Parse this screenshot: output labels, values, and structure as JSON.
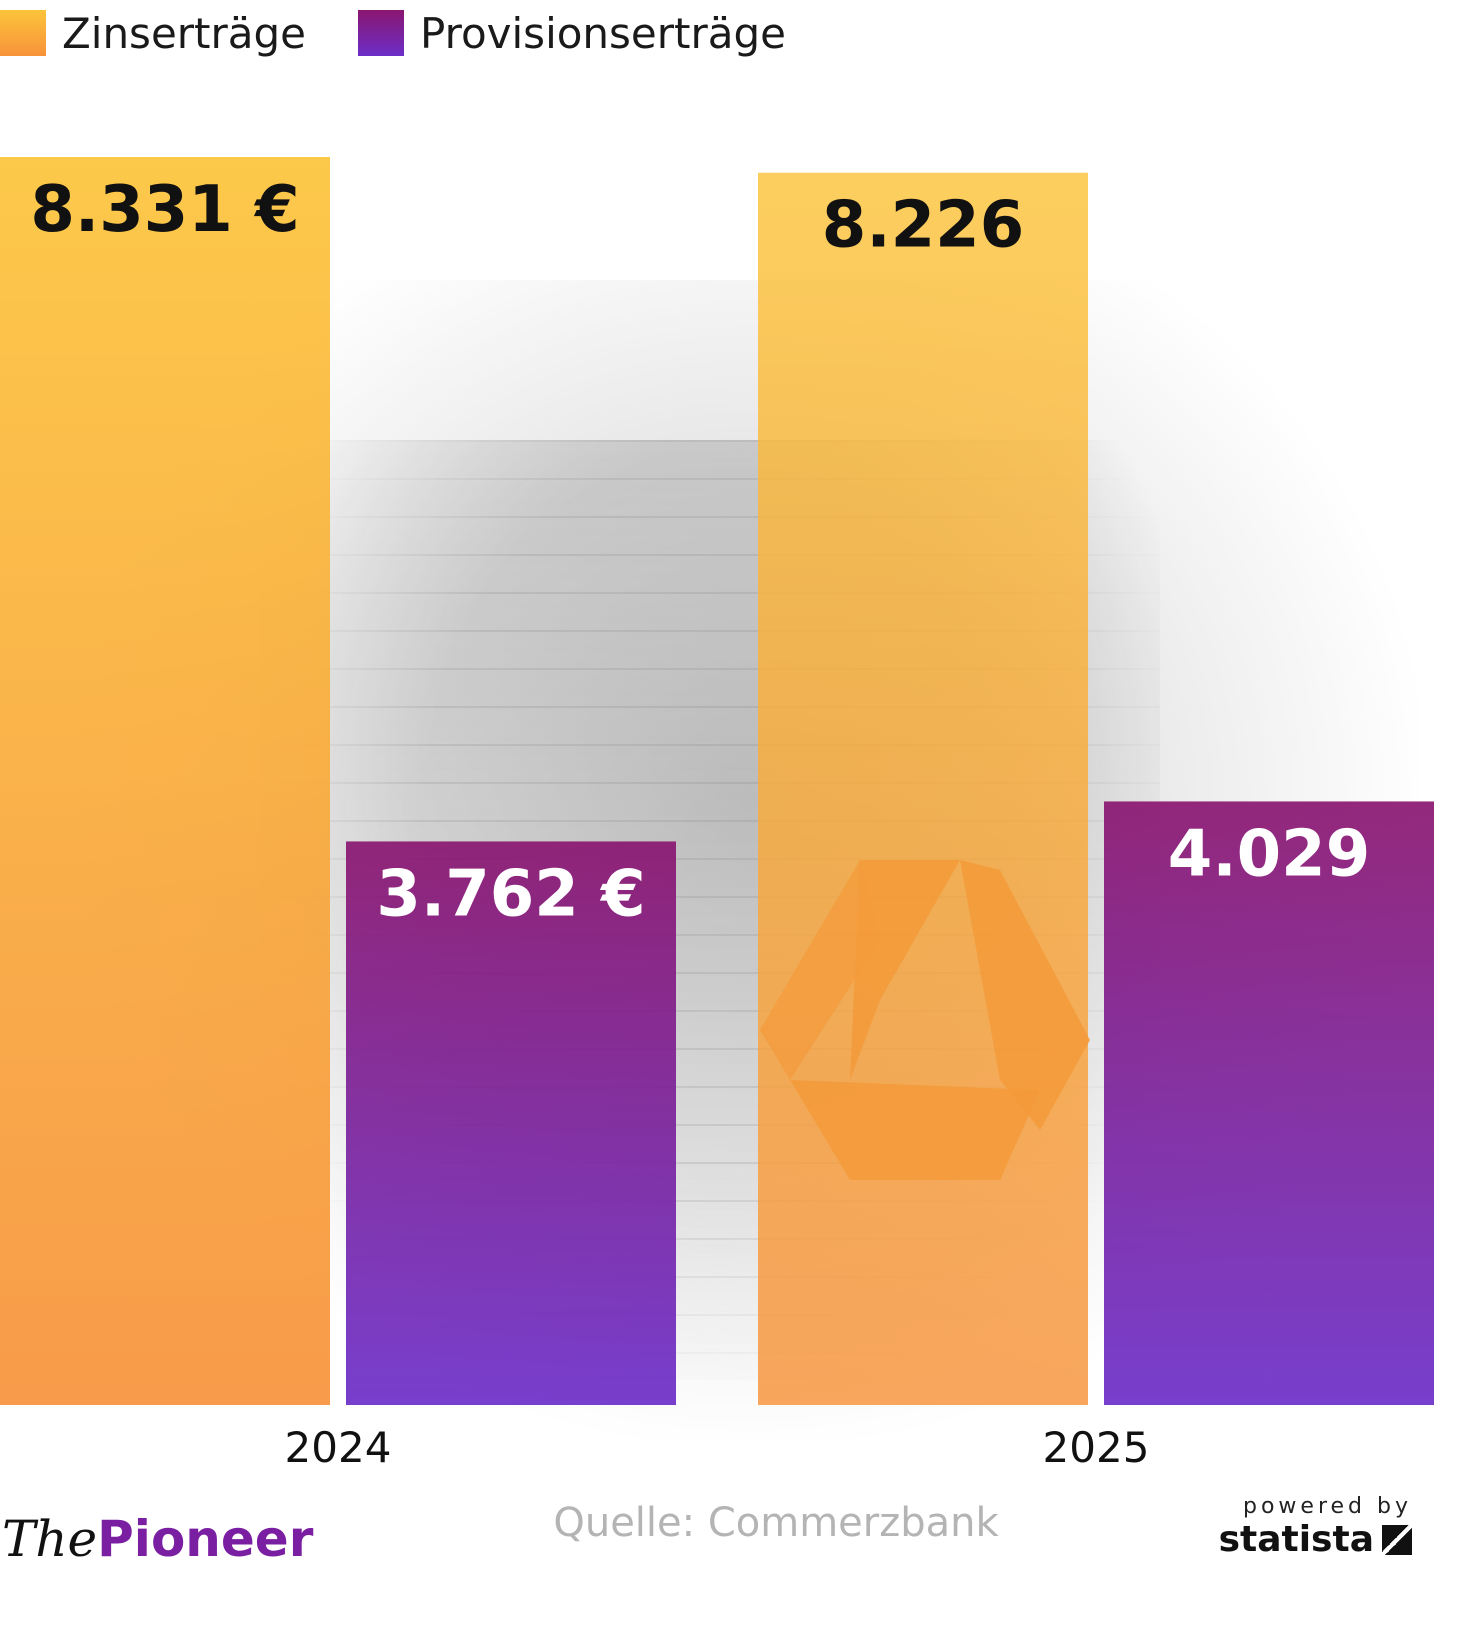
{
  "legend": [
    {
      "label": "Zinserträge",
      "color": "#fcc43a"
    },
    {
      "label": "Provisionserträge",
      "color": "#8a1670"
    }
  ],
  "chart_data": {
    "type": "bar",
    "categories": [
      "2024",
      "2025"
    ],
    "series": [
      {
        "name": "Zinserträge",
        "values": [
          8331,
          8226
        ],
        "value_labels": [
          "8.331 €",
          "8.226"
        ],
        "color_top": "#fcc43a",
        "color_bottom": "#f7923a"
      },
      {
        "name": "Provisionserträge",
        "values": [
          3762,
          4029
        ],
        "value_labels": [
          "3.762 €",
          "4.029"
        ],
        "color_top": "#8a1670",
        "color_bottom": "#6c2ec8"
      }
    ],
    "title": "",
    "xlabel": "",
    "ylabel": "",
    "ylim": [
      0,
      8331
    ],
    "grid": false,
    "legend_position": "top-left"
  },
  "footer": {
    "source": "Quelle: Commerzbank",
    "brand_the": "The",
    "brand_pioneer": "Pioneer",
    "powered_by": "powered by",
    "statista": "statista"
  }
}
